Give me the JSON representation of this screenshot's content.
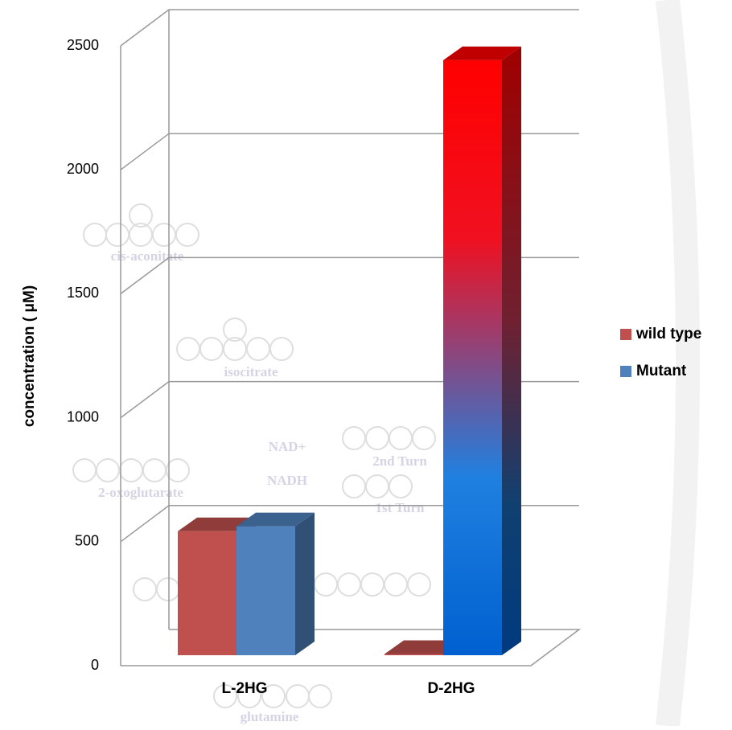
{
  "chart_data": {
    "type": "bar3d",
    "y_label": "concentration ( μM)",
    "categories": [
      "L-2HG",
      "D-2HG"
    ],
    "series": [
      {
        "name": "wild type",
        "color": "#c0504d",
        "values": [
          500,
          5
        ]
      },
      {
        "name": "Mutant",
        "color": "#4f81bd",
        "values": [
          520,
          2400
        ]
      }
    ],
    "ylim": [
      0,
      2500
    ],
    "yticks": [
      0,
      500,
      1000,
      1500,
      2000,
      2500
    ],
    "grid": true,
    "legend": "right",
    "background_annotations": [
      "cis-aconitate",
      "isocitrate",
      "2-oxoglutarate",
      "NAD+",
      "NADH",
      "2nd Turn",
      "1st Turn",
      "glutamine"
    ]
  }
}
